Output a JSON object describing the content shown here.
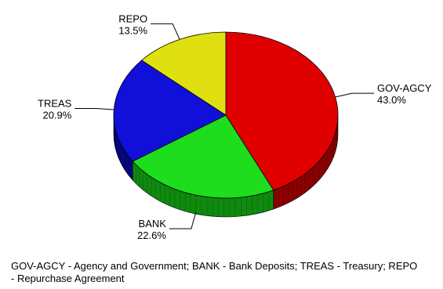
{
  "chart_data": {
    "type": "pie",
    "style": "3d",
    "slices": [
      {
        "label": "GOV-AGCY",
        "value": 43.0,
        "percent_label": "43.0%",
        "color": "#e00000",
        "side_color": "#8c0000"
      },
      {
        "label": "BANK",
        "value": 22.6,
        "percent_label": "22.6%",
        "color": "#1ddd1d",
        "side_color": "#0f8a0f"
      },
      {
        "label": "TREAS",
        "value": 20.9,
        "percent_label": "20.9%",
        "color": "#1010d8",
        "side_color": "#060680"
      },
      {
        "label": "REPO",
        "value": 13.5,
        "percent_label": "13.5%",
        "color": "#e0e010",
        "side_color": "#8a8a08"
      }
    ],
    "start_angle": "12 o'clock",
    "direction": "clockwise",
    "legend": "none"
  },
  "footnote": "GOV-AGCY - Agency and Government; BANK - Bank Deposits; TREAS - Treasury; REPO - Repurchase Agreement"
}
